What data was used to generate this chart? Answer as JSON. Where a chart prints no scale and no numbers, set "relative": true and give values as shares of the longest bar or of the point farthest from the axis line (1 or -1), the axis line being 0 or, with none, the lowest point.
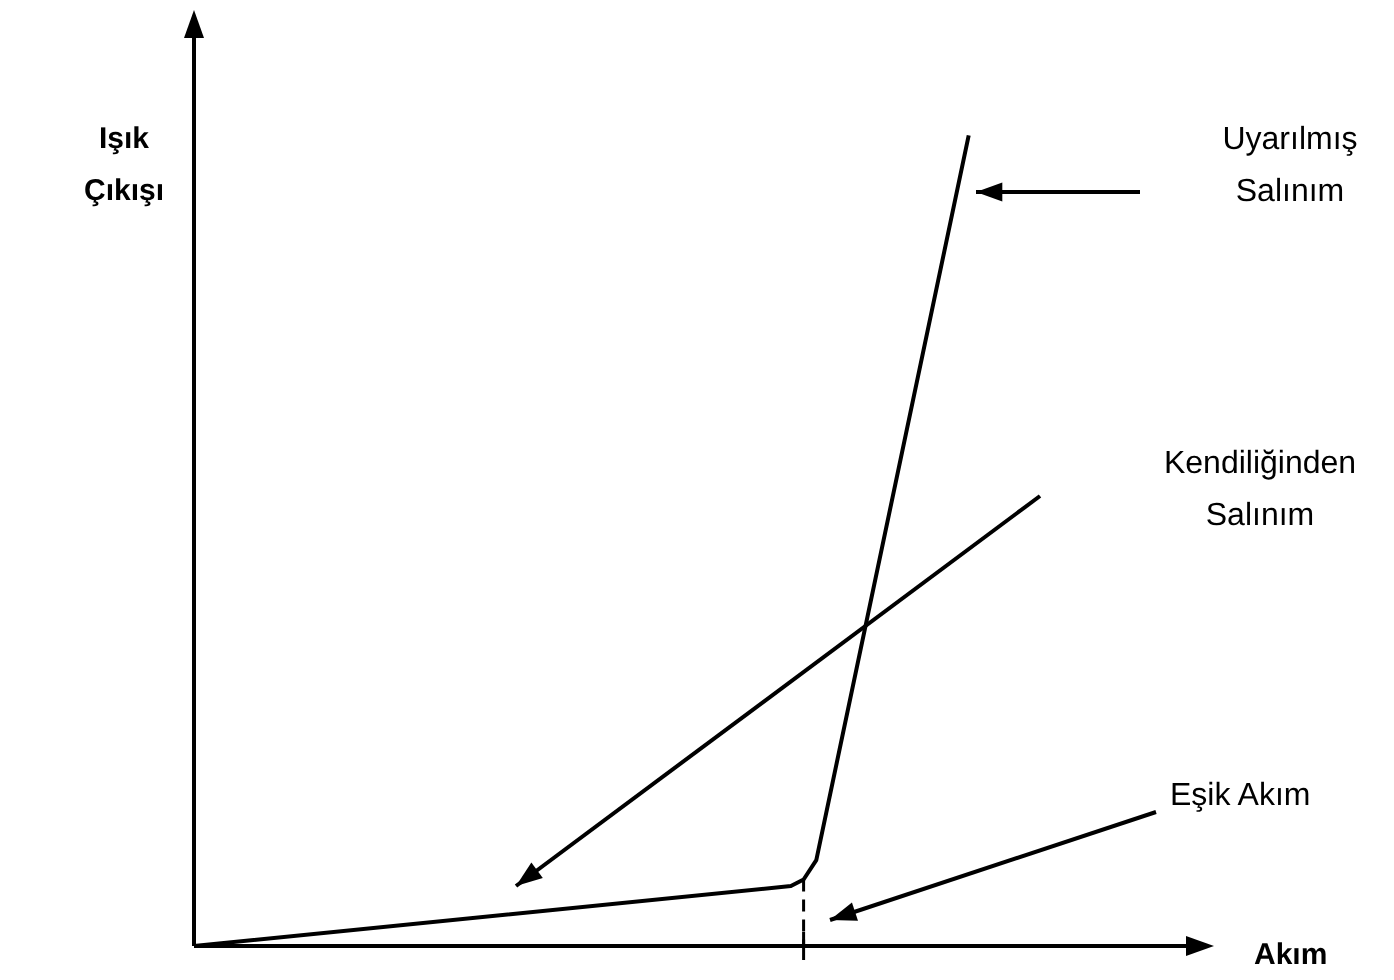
{
  "chart_data": {
    "type": "line",
    "relative": true,
    "xlabel": "Akım",
    "ylabel": "Işık Çıkışı",
    "tick_labels": false,
    "legend": false,
    "marker": "none",
    "categories": [
      null,
      null,
      null,
      null,
      null,
      null,
      null,
      null,
      null,
      null,
      null,
      null,
      null,
      null,
      null,
      null,
      null,
      null,
      null,
      null,
      null,
      null,
      null,
      null,
      null,
      null,
      null,
      null,
      null,
      null,
      null,
      null,
      null,
      null,
      null,
      null,
      null,
      null,
      null,
      null,
      null,
      null,
      null,
      null,
      null,
      null,
      null,
      null,
      null,
      null,
      null,
      null,
      null,
      null,
      null,
      null,
      null,
      null,
      null,
      null,
      null,
      null,
      null,
      null,
      null,
      null,
      null,
      null,
      null,
      null,
      null,
      null,
      null,
      null,
      null,
      null,
      null,
      null,
      null,
      null,
      null
    ],
    "series": [
      {
        "color": "#000000",
        "values": [
          0,
          null,
          null,
          null,
          null,
          null,
          null,
          null,
          null,
          null,
          null,
          null,
          null,
          null,
          null,
          null,
          null,
          null,
          null,
          null,
          null,
          null,
          null,
          null,
          null,
          null,
          null,
          null,
          null,
          null,
          null,
          null,
          null,
          null,
          null,
          null,
          null,
          null,
          null,
          null,
          null,
          null,
          null,
          null,
          null,
          null,
          null,
          0.074,
          0.082,
          0.106,
          null,
          null,
          null,
          null,
          null,
          null,
          null,
          null,
          null,
          null,
          null,
          1,
          null,
          null,
          null,
          null,
          null,
          null,
          null,
          null,
          null,
          null,
          null,
          null,
          null,
          null,
          null,
          null,
          null,
          null,
          null
        ]
      }
    ],
    "annotations": [
      "Uyarılmış Salınım",
      "Kendiliğinden Salınım",
      "Eşik Akım"
    ]
  }
}
